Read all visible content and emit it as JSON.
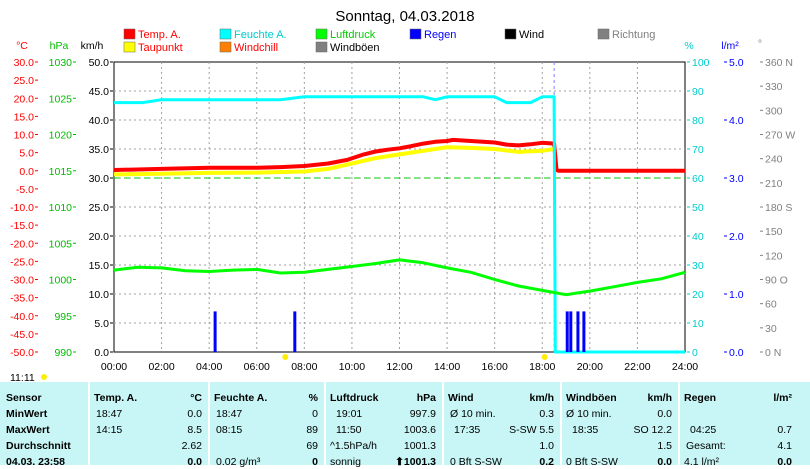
{
  "chart_data": {
    "type": "line",
    "title": "Sonntag, 04.03.2018",
    "x_ticks": [
      "00:00",
      "02:00",
      "04:00",
      "06:00",
      "08:00",
      "10:00",
      "12:00",
      "14:00",
      "16:00",
      "18:00",
      "20:00",
      "22:00",
      "24:00"
    ],
    "xlim": [
      0,
      24
    ],
    "axes": {
      "temp": {
        "label": "°C",
        "color": "#ff0000",
        "ylim": [
          -50,
          30
        ],
        "ticks": [
          "30.0",
          "25.0",
          "20.0",
          "15.0",
          "10.0",
          "5.0",
          "0.0",
          "-5.0",
          "-10.0",
          "-15.0",
          "-20.0",
          "-25.0",
          "-30.0",
          "-35.0",
          "-40.0",
          "-45.0",
          "-50.0"
        ]
      },
      "pressure": {
        "label": "hPa",
        "color": "#00cc00",
        "ylim": [
          990,
          1030
        ],
        "ticks": [
          "1030",
          "1025",
          "1020",
          "1015",
          "1010",
          "1005",
          "1000",
          "995",
          "990"
        ]
      },
      "wind": {
        "label": "km/h",
        "color": "#000000",
        "ylim": [
          0,
          50
        ],
        "ticks": [
          "50.0",
          "45.0",
          "40.0",
          "35.0",
          "30.0",
          "25.0",
          "20.0",
          "15.0",
          "10.0",
          "5.0",
          "0.0"
        ]
      },
      "humidity": {
        "label": "%",
        "color": "#00cccc",
        "ylim": [
          0,
          100
        ],
        "ticks": [
          "100",
          "90",
          "80",
          "70",
          "60",
          "50",
          "40",
          "30",
          "20",
          "10",
          "0"
        ]
      },
      "rain": {
        "label": "l/m²",
        "color": "#0000ff",
        "ylim": [
          0,
          5
        ],
        "ticks": [
          "5.0",
          "4.0",
          "3.0",
          "2.0",
          "1.0",
          "0.0"
        ]
      },
      "direction": {
        "label": "°",
        "color": "#808080",
        "ylim": [
          0,
          360
        ],
        "ticks": [
          "360 N",
          "330",
          "300",
          "270 W",
          "240",
          "210",
          "180 S",
          "150",
          "120",
          "90 O",
          "60",
          "30",
          "0 N"
        ]
      }
    },
    "legend": [
      {
        "name": "Temp. A.",
        "color": "#ff0000"
      },
      {
        "name": "Taupunkt",
        "color": "#ffff00"
      },
      {
        "name": "Feuchte A.",
        "color": "#00ffff"
      },
      {
        "name": "Windchill",
        "color": "#ff8000"
      },
      {
        "name": "Luftdruck",
        "color": "#00ff00"
      },
      {
        "name": "Windböen",
        "color": "#808080"
      },
      {
        "name": "Regen",
        "color": "#0000ff"
      },
      {
        "name": "Wind",
        "color": "#000000"
      },
      {
        "name": "Richtung",
        "color": "#808080"
      }
    ],
    "series": [
      {
        "name": "Temp. A.",
        "axis": "temp",
        "color": "#ff0000",
        "x": [
          0,
          2,
          4,
          6,
          7,
          8,
          9,
          9.8,
          10.5,
          11,
          11.5,
          12,
          12.5,
          13,
          13.5,
          14,
          14.25,
          15,
          16,
          16.5,
          17,
          17.5,
          18,
          18.5,
          18.6,
          18.7,
          20,
          22,
          24
        ],
        "y": [
          0.2,
          0.5,
          0.8,
          0.8,
          1.0,
          1.3,
          2.0,
          3.0,
          4.5,
          5.3,
          5.8,
          6.2,
          6.8,
          7.5,
          8.0,
          8.2,
          8.5,
          8.2,
          7.8,
          7.2,
          7.0,
          7.3,
          7.7,
          7.5,
          0.2,
          0.0,
          0.0,
          0.0,
          0.0
        ]
      },
      {
        "name": "Taupunkt",
        "axis": "temp",
        "color": "#ffff00",
        "x": [
          0,
          2,
          4,
          6,
          8,
          9,
          10,
          11,
          12,
          13,
          14,
          15,
          16,
          17,
          18,
          18.5
        ],
        "y": [
          -1.0,
          -0.8,
          -0.6,
          -0.5,
          -0.2,
          0.5,
          2.0,
          3.5,
          4.5,
          5.5,
          6.5,
          6.3,
          6.0,
          5.2,
          5.5,
          6.0
        ]
      },
      {
        "name": "Feuchte A.",
        "axis": "humidity",
        "color": "#00ffff",
        "x": [
          0,
          1.2,
          2,
          3,
          4,
          5,
          6,
          7,
          8,
          9,
          10,
          11,
          12,
          13,
          13.5,
          14,
          15,
          16,
          16.5,
          17,
          17.5,
          18,
          18.3,
          18.5,
          18.55,
          18.6,
          19,
          20,
          24
        ],
        "y": [
          86,
          86,
          87,
          87,
          87,
          87,
          87,
          87,
          88,
          88,
          88,
          88,
          88,
          88,
          87,
          88,
          88,
          88,
          86,
          86,
          86,
          88,
          88,
          88,
          0,
          0,
          0,
          0,
          0
        ]
      },
      {
        "name": "Luftdruck",
        "axis": "pressure",
        "color": "#00ff00",
        "x": [
          0,
          1,
          2,
          3,
          4,
          5,
          6,
          7,
          8,
          9,
          10,
          11,
          12,
          13,
          14,
          15,
          16,
          17,
          18,
          19,
          20,
          21,
          22,
          23,
          24
        ],
        "y": [
          1001.3,
          1001.7,
          1001.6,
          1001.2,
          1001.1,
          1001.3,
          1001.4,
          1000.9,
          1001.0,
          1001.4,
          1001.8,
          1002.2,
          1002.7,
          1002.3,
          1001.6,
          1001.0,
          1000.0,
          999.1,
          998.5,
          997.9,
          998.4,
          999.0,
          999.6,
          1000.1,
          1001.0
        ]
      },
      {
        "name": "Windböen",
        "axis": "wind",
        "color": "#808080",
        "x": [],
        "y": []
      },
      {
        "name": "Wind",
        "axis": "wind",
        "color": "#000000",
        "x": [],
        "y": []
      },
      {
        "name": "Regen",
        "axis": "rain",
        "color": "#0000ff",
        "x": [
          4.25,
          7.6,
          19.05,
          19.2,
          19.5,
          19.75
        ],
        "y": [
          0.7,
          0.7,
          0.7,
          0.7,
          0.7,
          0.7
        ]
      },
      {
        "name": "Richtung",
        "axis": "direction",
        "color": "#808080",
        "x": [],
        "y": []
      }
    ],
    "reference_line": {
      "axis": "temp",
      "y": -2.0,
      "color": "#00cc00",
      "style": "dashed"
    },
    "grid": true,
    "legend_placement": "top"
  },
  "footer": {
    "time_left": "11:11"
  },
  "table": {
    "sensor": {
      "header": "Sensor",
      "rows": [
        "MinWert",
        "MaxWert",
        "Durchschnitt",
        "04.03. 23:58"
      ]
    },
    "temp": {
      "header": "Temp. A.",
      "unit": "°C",
      "rows": [
        [
          "18:47",
          "0.0"
        ],
        [
          "14:15",
          "8.5"
        ],
        [
          "",
          "2.62"
        ],
        [
          "",
          "0.0"
        ]
      ]
    },
    "feuchte": {
      "header": "Feuchte A.",
      "unit": "%",
      "rows": [
        [
          "18:47",
          "0"
        ],
        [
          "08:15",
          "89"
        ],
        [
          "",
          "69"
        ],
        [
          "0.02 g/m³",
          "0"
        ]
      ]
    },
    "luftdruck": {
      "header": "Luftdruck",
      "unit": "hPa",
      "rows": [
        [
          "19:01",
          "997.9"
        ],
        [
          "11:50",
          "1003.6"
        ],
        [
          "^1.5hPa/h",
          "1001.3"
        ],
        [
          "sonnig",
          "⬆1001.3"
        ]
      ]
    },
    "wind": {
      "header": "Wind",
      "unit": "km/h",
      "rows": [
        [
          "Ø 10 min.",
          "0.3"
        ],
        [
          "17:35",
          "S-SW 5.5"
        ],
        [
          "",
          "1.0"
        ],
        [
          "0 Bft S-SW",
          "0.2"
        ]
      ]
    },
    "windboeen": {
      "header": "Windböen",
      "unit": "km/h",
      "rows": [
        [
          "Ø 10 min.",
          "0.0"
        ],
        [
          "18:35",
          "SO 12.2"
        ],
        [
          "",
          "1.5"
        ],
        [
          "0 Bft S-SW",
          "0.0"
        ]
      ]
    },
    "regen": {
      "header": "Regen",
      "unit": "l/m²",
      "rows": [
        [
          "",
          ""
        ],
        [
          "04:25",
          "0.7"
        ],
        [
          "Gesamt:",
          "4.1"
        ],
        [
          "4.1 l/m²",
          "0.0"
        ]
      ]
    }
  }
}
